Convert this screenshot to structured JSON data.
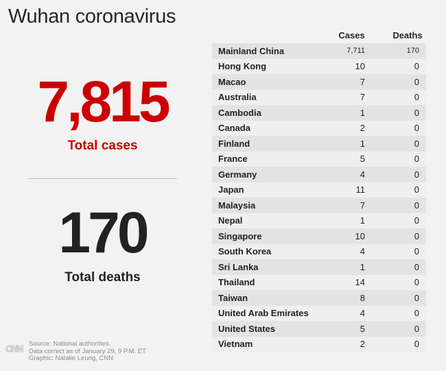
{
  "title": "Wuhan coronavirus",
  "summary": {
    "total_cases": "7,815",
    "total_cases_label": "Total cases",
    "total_deaths": "170",
    "total_deaths_label": "Total deaths"
  },
  "table": {
    "headers": {
      "cases": "Cases",
      "deaths": "Deaths"
    },
    "rows": [
      {
        "country": "Mainland China",
        "cases": "7,711",
        "deaths": "170"
      },
      {
        "country": "Hong Kong",
        "cases": "10",
        "deaths": "0"
      },
      {
        "country": "Macao",
        "cases": "7",
        "deaths": "0"
      },
      {
        "country": "Australia",
        "cases": "7",
        "deaths": "0"
      },
      {
        "country": "Cambodia",
        "cases": "1",
        "deaths": "0"
      },
      {
        "country": "Canada",
        "cases": "2",
        "deaths": "0"
      },
      {
        "country": "Finland",
        "cases": "1",
        "deaths": "0"
      },
      {
        "country": "France",
        "cases": "5",
        "deaths": "0"
      },
      {
        "country": "Germany",
        "cases": "4",
        "deaths": "0"
      },
      {
        "country": "Japan",
        "cases": "11",
        "deaths": "0"
      },
      {
        "country": "Malaysia",
        "cases": "7",
        "deaths": "0"
      },
      {
        "country": "Nepal",
        "cases": "1",
        "deaths": "0"
      },
      {
        "country": "Singapore",
        "cases": "10",
        "deaths": "0"
      },
      {
        "country": "South Korea",
        "cases": "4",
        "deaths": "0"
      },
      {
        "country": "Sri Lanka",
        "cases": "1",
        "deaths": "0"
      },
      {
        "country": "Thailand",
        "cases": "14",
        "deaths": "0"
      },
      {
        "country": "Taiwan",
        "cases": "8",
        "deaths": "0"
      },
      {
        "country": "United Arab Emirates",
        "cases": "4",
        "deaths": "0"
      },
      {
        "country": "United States",
        "cases": "5",
        "deaths": "0"
      },
      {
        "country": "Vietnam",
        "cases": "2",
        "deaths": "0"
      }
    ]
  },
  "footer": {
    "logo": "CNN",
    "source": "Source: National authorities.",
    "data_note": "Data correct as of January 29, 9 P.M. ET",
    "graphic_credit": "Graphic: Natalie Leung, CNN"
  },
  "colors": {
    "cases_accent": "#cc0000",
    "deaths_text": "#222222",
    "row_dark": "#e3e3e3",
    "row_light": "#efefef"
  },
  "chart_data": {
    "type": "table",
    "title": "Wuhan coronavirus",
    "columns": [
      "",
      "Cases",
      "Deaths"
    ],
    "rows": [
      [
        "Mainland China",
        7711,
        170
      ],
      [
        "Hong Kong",
        10,
        0
      ],
      [
        "Macao",
        7,
        0
      ],
      [
        "Australia",
        7,
        0
      ],
      [
        "Cambodia",
        1,
        0
      ],
      [
        "Canada",
        2,
        0
      ],
      [
        "Finland",
        1,
        0
      ],
      [
        "France",
        5,
        0
      ],
      [
        "Germany",
        4,
        0
      ],
      [
        "Japan",
        11,
        0
      ],
      [
        "Malaysia",
        7,
        0
      ],
      [
        "Nepal",
        1,
        0
      ],
      [
        "Singapore",
        10,
        0
      ],
      [
        "South Korea",
        4,
        0
      ],
      [
        "Sri Lanka",
        1,
        0
      ],
      [
        "Thailand",
        14,
        0
      ],
      [
        "Taiwan",
        8,
        0
      ],
      [
        "United Arab Emirates",
        4,
        0
      ],
      [
        "United States",
        5,
        0
      ],
      [
        "Vietnam",
        2,
        0
      ]
    ]
  }
}
